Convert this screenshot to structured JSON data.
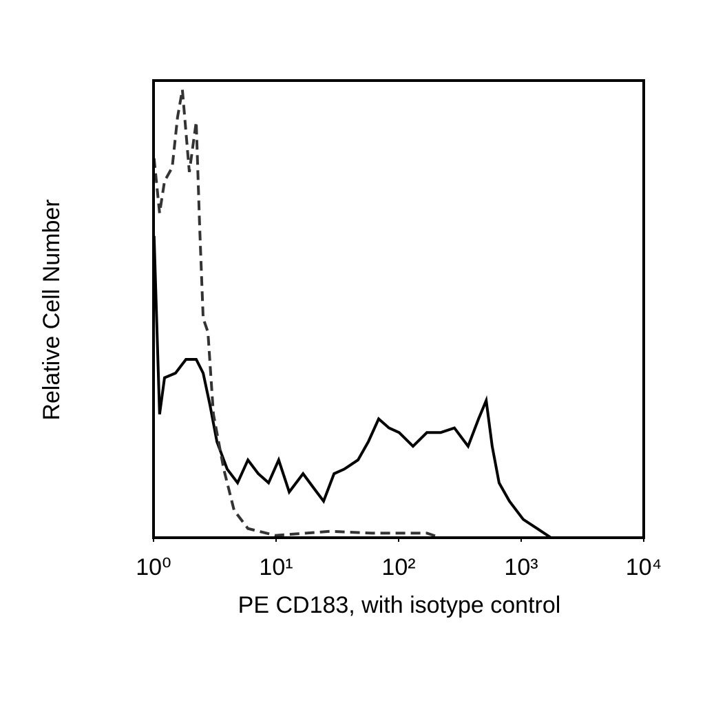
{
  "chart_data": {
    "type": "line",
    "x_label": "PE CD183, with isotype control",
    "y_label": "Relative Cell Number",
    "xscale": "log",
    "xlim": [
      1,
      10000
    ],
    "ylim": [
      0,
      100
    ],
    "xticks": [
      {
        "value": 1,
        "label": "10⁰"
      },
      {
        "value": 10,
        "label": "10¹"
      },
      {
        "value": 100,
        "label": "10²"
      },
      {
        "value": 1000,
        "label": "10³"
      },
      {
        "value": 10000,
        "label": "10⁴"
      }
    ],
    "series": [
      {
        "color": "#000000",
        "dashed": false,
        "x": [
          1.01,
          1.12,
          1.23,
          1.51,
          1.84,
          2.23,
          2.54,
          2.89,
          3.29,
          3.99,
          4.85,
          5.89,
          7.15,
          8.68,
          10.5,
          12.8,
          16.6,
          20.1,
          24.4,
          29.7,
          36,
          46.6,
          56.6,
          68.7,
          83.4,
          101,
          131,
          170,
          220,
          285,
          369,
          449,
          518,
          580,
          660,
          802,
          1040,
          1350,
          1750
        ],
        "values": [
          66,
          27,
          35,
          36,
          39,
          39,
          36,
          29,
          21,
          15,
          12,
          17,
          14,
          12,
          17,
          10,
          14,
          11,
          8,
          14,
          15,
          17,
          21,
          26,
          24,
          23,
          20,
          23,
          23,
          24,
          20,
          26,
          30,
          20,
          12,
          8,
          4,
          2,
          0
        ]
      },
      {
        "color": "#333333",
        "dashed": true,
        "x": [
          1.01,
          1.12,
          1.23,
          1.42,
          1.57,
          1.72,
          1.96,
          2.23,
          2.38,
          2.54,
          2.78,
          3.08,
          3.74,
          4.54,
          5.89,
          9.88,
          27.8,
          60.3,
          170,
          220
        ],
        "values": [
          83,
          71,
          78,
          81,
          92,
          98,
          80,
          91,
          68,
          48,
          45,
          27,
          15,
          6,
          2,
          0.5,
          1.4,
          1,
          1,
          0
        ]
      }
    ]
  }
}
